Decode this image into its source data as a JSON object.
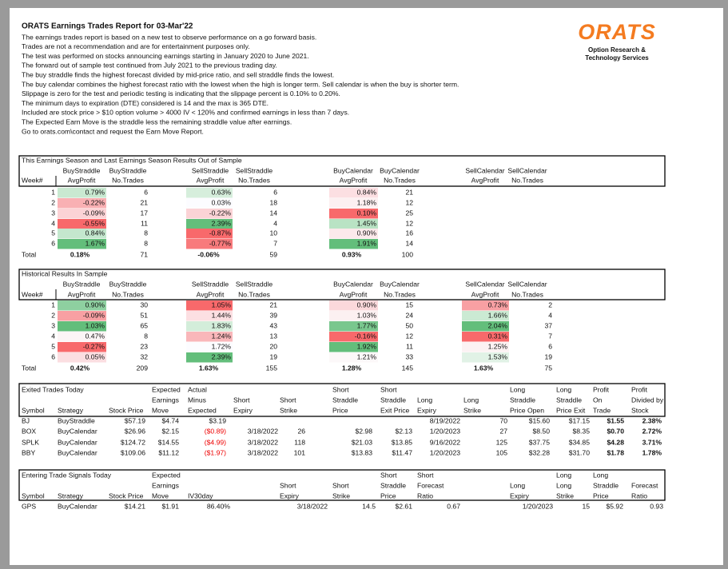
{
  "header": {
    "title": "ORATS Earnings Trades Report for 03-Mar'22",
    "lines": [
      "The earnings trades report is based on a new test to observe performance on a go forward basis.",
      "Trades are not a recommendation and are for entertainment purposes only.",
      "The test was performed on stocks announcing earnings starting in January 2020 to June 2021.",
      "The forward out of sample test continued from July 2021 to the previous trading day.",
      "The buy straddle finds the highest forecast divided by mid-price ratio, and sell straddle finds the lowest.",
      "The buy calendar combines the highest forecast ratio with the lowest when the high is longer term. Sell calendar is when the buy is shorter term.",
      "Slippage is zero for the test and periodic testing is indicating that the slippage percent is 0.10% to 0.20%.",
      "The minimum days to expiration (DTE) considered is 14 and the max is 365 DTE.",
      "Included are stock price > $10 option volume > 4000 IV < 120% and confirmed earnings in less than 7 days.",
      "The Expected Earn Move is the straddle less the remaining straddle value after earnings.",
      "Go to orats.com\\contact and request the Earn Move Report."
    ]
  },
  "logo": {
    "name": "ORATS",
    "tagline": [
      "Option Research &",
      "Technology Services"
    ]
  },
  "season_table": {
    "title": "This Earnings Season and Last Earnings Season Results Out of Sample",
    "header_rows": [
      [
        null,
        "BuyStraddle",
        "BuyStraddle",
        "SellStraddle",
        "SellStraddle",
        "BuyCalendar",
        "BuyCalendar",
        "SellCalendar",
        "SellCalendar"
      ],
      [
        "Week#",
        "AvgProfit",
        "No.Trades",
        "AvgProfit",
        "No.Trades",
        "AvgProfit",
        "No.Trades",
        "AvgProfit",
        "No.Trades"
      ]
    ],
    "rows": [
      [
        "1",
        "0.79%",
        "6",
        "0.63%",
        "6",
        "0.84%",
        "21"
      ],
      [
        "2",
        "-0.22%",
        "21",
        "0.03%",
        "18",
        "1.18%",
        "12"
      ],
      [
        "3",
        "-0.09%",
        "17",
        "-0.22%",
        "14",
        "0.10%",
        "25"
      ],
      [
        "4",
        "-0.55%",
        "11",
        "2.39%",
        "4",
        "1.45%",
        "12"
      ],
      [
        "5",
        "0.84%",
        "8",
        "-0.87%",
        "10",
        "0.90%",
        "16"
      ],
      [
        "6",
        "1.67%",
        "8",
        "-0.77%",
        "7",
        "1.91%",
        "14"
      ]
    ],
    "cell_colors": [
      [
        "#c9e9d1",
        "#d6eedc",
        "#fcdfe2"
      ],
      [
        "#f9b0b3",
        "#fcfcff",
        "#fcf0f1"
      ],
      [
        "#fbd3d6",
        "#fbd3d6",
        "#f8696b"
      ],
      [
        "#f8696b",
        "#63be7b",
        "#b9e3c4"
      ],
      [
        "#c4e7ce",
        "#f8696b",
        "#fce9eb"
      ],
      [
        "#63be7b",
        "#f87a7c",
        "#63be7b"
      ]
    ],
    "total": [
      "Total",
      "0.18%",
      "71",
      "-0.06%",
      "59",
      "0.93%",
      "100"
    ]
  },
  "history_table": {
    "title": "Historical Results In Sample",
    "header_rows": [
      [
        null,
        "BuyStraddle",
        "BuyStraddle",
        "SellStraddle",
        "SellStraddle",
        "BuyCalendar",
        "BuyCalendar",
        "SellCalendar",
        "SellCalendar"
      ],
      [
        "Week#",
        "AvgProfit",
        "No.Trades",
        "AvgProfit",
        "No.Trades",
        "AvgProfit",
        "No.Trades",
        "AvgProfit",
        "No.Trades"
      ]
    ],
    "rows": [
      [
        "1",
        "0.90%",
        "30",
        "1.05%",
        "21",
        "0.90%",
        "15",
        "0.73%",
        "2"
      ],
      [
        "2",
        "-0.09%",
        "51",
        "1.44%",
        "39",
        "1.03%",
        "24",
        "1.66%",
        "4"
      ],
      [
        "3",
        "1.03%",
        "65",
        "1.83%",
        "43",
        "1.77%",
        "50",
        "2.04%",
        "37"
      ],
      [
        "4",
        "0.47%",
        "8",
        "1.24%",
        "13",
        "-0.16%",
        "12",
        "0.31%",
        "7"
      ],
      [
        "5",
        "-0.27%",
        "23",
        "1.72%",
        "20",
        "1.92%",
        "11",
        "1.25%",
        "6"
      ],
      [
        "6",
        "0.05%",
        "32",
        "2.39%",
        "19",
        "1.21%",
        "33",
        "1.53%",
        "19"
      ]
    ],
    "cell_colors": [
      [
        "#8ed0a0",
        "#f8696b",
        "#fbd8db",
        "#f8a0a3"
      ],
      [
        "#f8a0a3",
        "#fcdfe2",
        "#fcf0f1",
        "#cbead3"
      ],
      [
        "#63be7b",
        "#d3edda",
        "#79c78e",
        "#63be7b"
      ],
      [
        "#fcf5f6",
        "#f9b7ba",
        "#f8696b",
        "#f8696b"
      ],
      [
        "#f8696b",
        "#fcfcff",
        "#63be7b",
        "#fcf2f3"
      ],
      [
        "#fbdee1",
        "#63be7b",
        "#fcf8f9",
        "#e1f2e6"
      ]
    ],
    "total": [
      "Total",
      "0.42%",
      "209",
      "1.63%",
      "155",
      "1.28%",
      "145",
      "1.63%",
      "75"
    ]
  },
  "exited_table": {
    "header_rows": [
      [
        "Exited Trades Today",
        null,
        null,
        "Expected",
        "Actual",
        null,
        null,
        "Short",
        "Short",
        null,
        null,
        "Long",
        "Long",
        "Profit",
        "Profit"
      ],
      [
        null,
        null,
        null,
        "Earnings",
        "Minus",
        "Short",
        "Short",
        "Straddle",
        "Straddle",
        "Long",
        "Long",
        "Straddle",
        "Straddle",
        "On",
        "Divided by"
      ],
      [
        "Symbol",
        "Strategy",
        "Stock Price",
        "Move",
        "Expected",
        "Expiry",
        "Strike",
        "Price",
        "Exit Price",
        "Expiry",
        "Strike",
        "Price Open",
        "Price Exit",
        "Trade",
        "Stock"
      ]
    ],
    "rows": [
      [
        "BJ",
        "BuyStraddle",
        "$57.19",
        "$4.74",
        "$3.19",
        null,
        null,
        null,
        null,
        "8/19/2022",
        "70",
        "$15.60",
        "$17.15",
        "$1.55",
        "2.38%"
      ],
      [
        "BOX",
        "BuyCalendar",
        "$26.96",
        "$2.15",
        "($0.89)",
        "3/18/2022",
        "26",
        "$2.98",
        "$2.13",
        "1/20/2023",
        "27",
        "$8.50",
        "$8.35",
        "$0.70",
        "2.72%"
      ],
      [
        "SPLK",
        "BuyCalendar",
        "$124.72",
        "$14.55",
        "($4.99)",
        "3/18/2022",
        "118",
        "$21.03",
        "$13.85",
        "9/16/2022",
        "125",
        "$37.75",
        "$34.85",
        "$4.28",
        "3.71%"
      ],
      [
        "BBY",
        "BuyCalendar",
        "$109.06",
        "$11.12",
        "($1.97)",
        "3/18/2022",
        "101",
        "$13.83",
        "$11.47",
        "1/20/2023",
        "105",
        "$32.28",
        "$31.70",
        "$1.78",
        "1.78%"
      ]
    ]
  },
  "entering_table": {
    "header_rows": [
      [
        "Entering Trade Signals Today",
        null,
        null,
        "Expected",
        null,
        null,
        null,
        "Short",
        "Short",
        null,
        "Long",
        "Long",
        null
      ],
      [
        null,
        null,
        null,
        "Earnings",
        null,
        "Short",
        "Short",
        "Straddle",
        "Forecast",
        "Long",
        "Long",
        "Straddle",
        "Forecast"
      ],
      [
        "Symbol",
        "Strategy",
        "Stock Price",
        "Move",
        "IV30day",
        "Expiry",
        "Strike",
        "Price",
        "Ratio",
        "Expiry",
        "Strike",
        "Price",
        "Ratio"
      ]
    ],
    "rows": [
      [
        "GPS",
        "BuyCalendar",
        "$14.21",
        "$1.91",
        "86.40%",
        "3/18/2022",
        "14.5",
        "$2.61",
        "0.67",
        "1/20/2023",
        "15",
        "$5.92",
        "0.93"
      ]
    ]
  }
}
